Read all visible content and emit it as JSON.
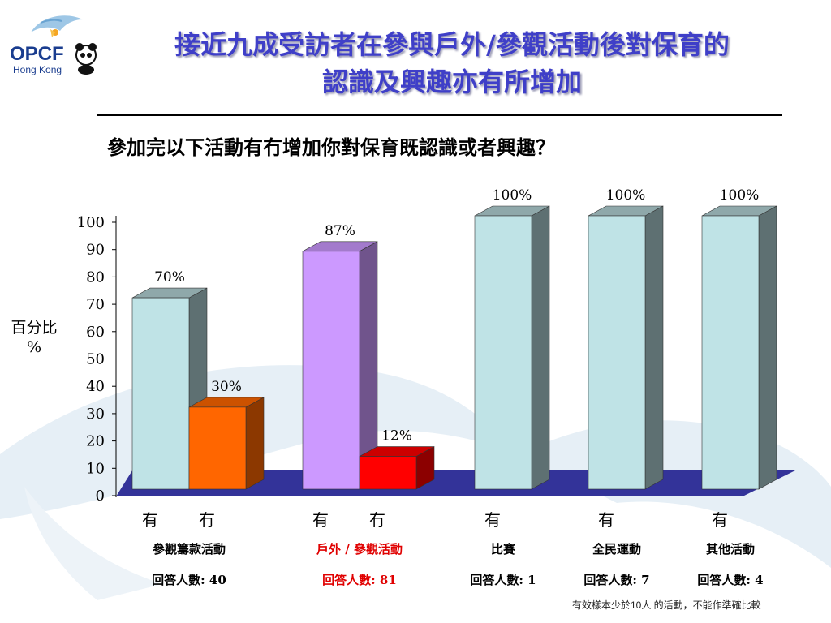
{
  "title_line1": "接近九成受訪者在參與戶外/參觀活動後對保育的",
  "title_line2": "認識及興趣亦有所增加",
  "subtitle": "參加完以下活動有冇增加你對保育既認識或者興趣？",
  "logo": {
    "text": "OPCF",
    "subtext": "Hong Kong"
  },
  "ylabel_line1": "百分比",
  "ylabel_line2": "%",
  "footnote": "有效樣本少於10人 的活動，不能作準確比較",
  "categories": [
    {
      "name": "參觀籌款活動",
      "responses": "回答人數: 40",
      "highlight": false
    },
    {
      "name": "戶外 / 參觀活動",
      "responses": "回答人數: 81",
      "highlight": true
    },
    {
      "name": "比賽",
      "responses": "回答人數: 1",
      "highlight": false
    },
    {
      "name": "全民運動",
      "responses": "回答人數: 7",
      "highlight": false
    },
    {
      "name": "其他活動",
      "responses": "回答人數: 4",
      "highlight": false
    }
  ],
  "colors": {
    "yes_default": "#BFE3E6",
    "yes_highlight": "#CC99FF",
    "no_default": "#FF6600",
    "no_highlight": "#FF0000",
    "floor": "#333399",
    "title": "#3F3FC8"
  },
  "chart_data": {
    "type": "bar",
    "ylim": [
      0,
      100
    ],
    "yticks": [
      0,
      10,
      20,
      30,
      40,
      50,
      60,
      70,
      80,
      90,
      100
    ],
    "bars": [
      {
        "group": "參觀籌款活動",
        "label": "有",
        "value": 70,
        "value_label": "70%",
        "kind": "yes"
      },
      {
        "group": "參觀籌款活動",
        "label": "冇",
        "value": 30,
        "value_label": "30%",
        "kind": "no"
      },
      {
        "group": "戶外 / 參觀活動",
        "label": "有",
        "value": 87,
        "value_label": "87%",
        "kind": "yes"
      },
      {
        "group": "戶外 / 參觀活動",
        "label": "冇",
        "value": 12,
        "value_label": "12%",
        "kind": "no"
      },
      {
        "group": "比賽",
        "label": "有",
        "value": 100,
        "value_label": "100%",
        "kind": "yes"
      },
      {
        "group": "全民運動",
        "label": "有",
        "value": 100,
        "value_label": "100%",
        "kind": "yes"
      },
      {
        "group": "其他活動",
        "label": "有",
        "value": 100,
        "value_label": "100%",
        "kind": "yes"
      }
    ]
  }
}
